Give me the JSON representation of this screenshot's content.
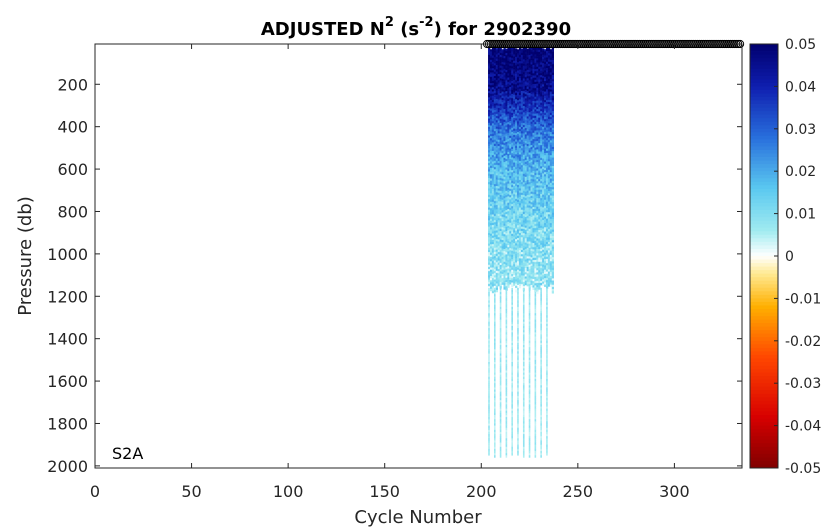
{
  "chart_data": {
    "type": "heatmap",
    "title": {
      "prefix": "ADJUSTED N",
      "sup1": "2",
      "mid": " (s",
      "sup2": "-2",
      "suffix": ") for 2902390"
    },
    "xlabel": "Cycle Number",
    "ylabel": "Pressure (db)",
    "xlim": [
      0,
      335
    ],
    "ylim": [
      2010,
      10
    ],
    "y_reversed": true,
    "xticks": [
      0,
      50,
      100,
      150,
      200,
      250,
      300
    ],
    "xtick_labels": [
      "0",
      "50",
      "100",
      "150",
      "200",
      "250",
      "300"
    ],
    "yticks": [
      200,
      400,
      600,
      800,
      1000,
      1200,
      1400,
      1600,
      1800,
      2000
    ],
    "ytick_labels": [
      "200",
      "400",
      "600",
      "800",
      "1000",
      "1200",
      "1400",
      "1600",
      "1800",
      "2000"
    ],
    "colorbar": {
      "clim": [
        -0.05,
        0.05
      ],
      "ticks": [
        0.05,
        0.04,
        0.03,
        0.02,
        0.01,
        0,
        -0.01,
        -0.02,
        -0.03,
        -0.04,
        -0.05
      ],
      "tick_labels": [
        "0.05",
        "0.04",
        "0.03",
        "0.02",
        "0.01",
        "0",
        "-0.01",
        "-0.02",
        "-0.03",
        "-0.04",
        "-0.05"
      ]
    },
    "annotation": "S2A",
    "data_region": {
      "cycles": [
        204,
        237
      ],
      "dense_pressure_max": 1180,
      "deep_profile_cycles": [
        204,
        207,
        210,
        213,
        216,
        219,
        222,
        225,
        228,
        231,
        234
      ],
      "deep_profile_pressure_max": 1960,
      "value_profile": [
        {
          "pressure": 20,
          "value": 0.05
        },
        {
          "pressure": 200,
          "value": 0.046
        },
        {
          "pressure": 300,
          "value": 0.037
        },
        {
          "pressure": 400,
          "value": 0.028
        },
        {
          "pressure": 600,
          "value": 0.018
        },
        {
          "pressure": 800,
          "value": 0.012
        },
        {
          "pressure": 1000,
          "value": 0.009
        },
        {
          "pressure": 1200,
          "value": 0.007
        },
        {
          "pressure": 2000,
          "value": 0.006
        }
      ]
    },
    "surface_markers": {
      "pressure": 10,
      "cycle_start": 203,
      "cycle_end": 334,
      "style": "open-circle"
    },
    "grid": false,
    "legend": "none"
  }
}
